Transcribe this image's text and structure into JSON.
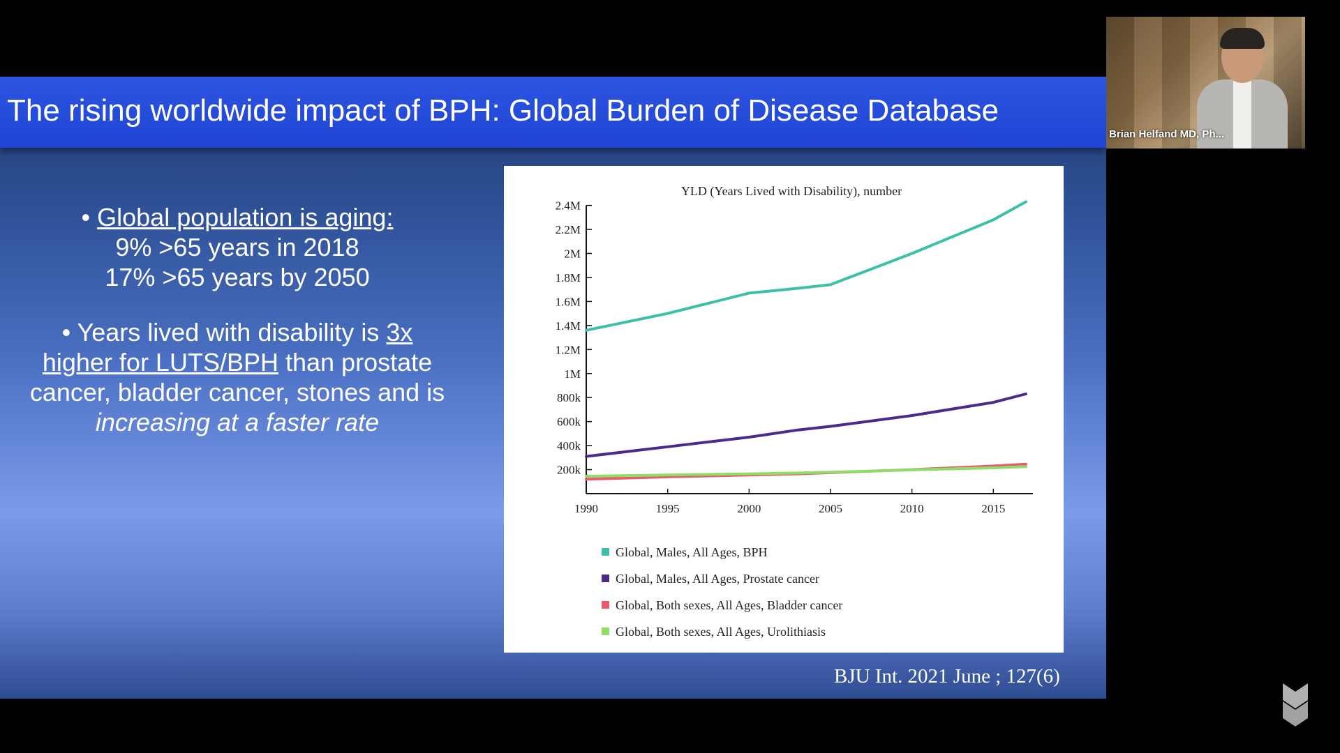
{
  "slide": {
    "title": "The rising worldwide impact of BPH: Global Burden of Disease Database",
    "bullet1": {
      "heading": "Global population is aging:",
      "line1": "9% >65 years in 2018",
      "line2": "17% >65 years by 2050"
    },
    "bullet2": {
      "part1": "Years lived with disability is ",
      "part2": "3x",
      "part3": "higher for LUTS/BPH",
      "part4": " than prostate cancer, bladder cancer, stones and is ",
      "part5": "increasing at a faster rate"
    },
    "citation": "BJU Int. 2021 June ; 127(6)"
  },
  "video": {
    "participant_name": "Brian Helfand MD, Ph..."
  },
  "chart_data": {
    "type": "line",
    "title": "YLD (Years Lived with Disability), number",
    "x": [
      1990,
      1995,
      2000,
      2003,
      2005,
      2010,
      2015,
      2017
    ],
    "xticks": [
      1990,
      1995,
      2000,
      2005,
      2010,
      2015
    ],
    "xlim": [
      1990,
      2017
    ],
    "yticks": [
      200000,
      400000,
      600000,
      800000,
      1000000,
      1200000,
      1400000,
      1600000,
      1800000,
      2000000,
      2200000,
      2400000
    ],
    "ytick_labels": [
      "200k",
      "400k",
      "600k",
      "800k",
      "1M",
      "1.2M",
      "1.4M",
      "1.6M",
      "1.8M",
      "2M",
      "2.2M",
      "2.4M"
    ],
    "ylim": [
      0,
      2450000
    ],
    "series": [
      {
        "name": "Global, Males, All Ages, BPH",
        "color": "#3cc0a8",
        "values": [
          1360000,
          1500000,
          1670000,
          1710000,
          1740000,
          2000000,
          2280000,
          2430000
        ]
      },
      {
        "name": "Global, Males, All Ages, Prostate cancer",
        "color": "#4b2a8a",
        "values": [
          310000,
          390000,
          470000,
          530000,
          560000,
          650000,
          760000,
          830000
        ]
      },
      {
        "name": "Global, Both sexes, All Ages, Bladder cancer",
        "color": "#e85b6a",
        "values": [
          120000,
          140000,
          155000,
          165000,
          175000,
          200000,
          230000,
          245000
        ]
      },
      {
        "name": "Global, Both sexes, All Ages, Urolithiasis",
        "color": "#8fdd68",
        "values": [
          145000,
          155000,
          165000,
          172000,
          178000,
          198000,
          215000,
          225000
        ]
      }
    ],
    "legend_position": "bottom"
  }
}
